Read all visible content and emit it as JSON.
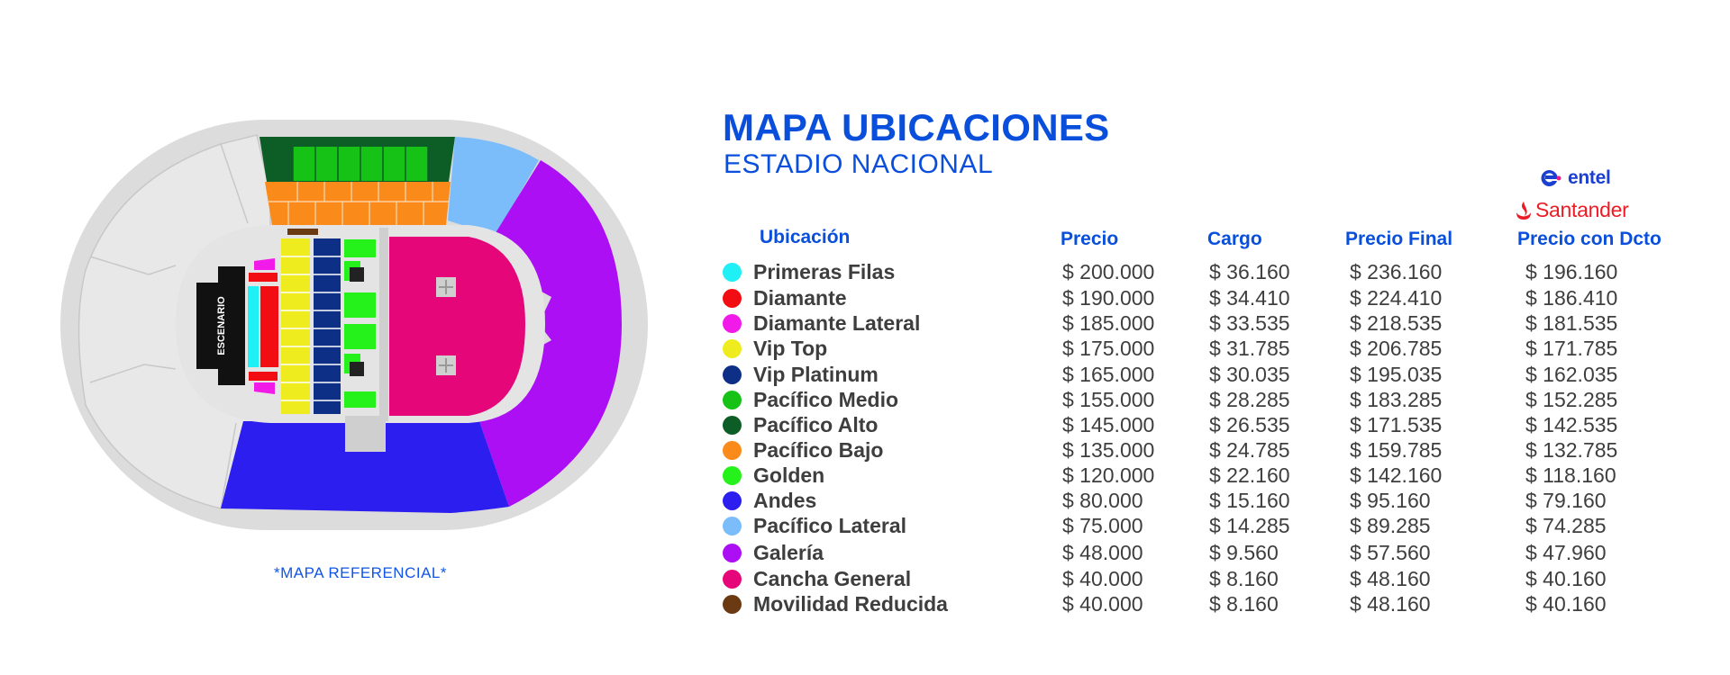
{
  "header": {
    "title": "MAPA UBICACIONES",
    "subtitle": "ESTADIO NACIONAL"
  },
  "brands": {
    "entel": "entel",
    "santander": "Santander"
  },
  "map": {
    "stage_label": "ESCENARIO",
    "note": "*MAPA REFERENCIAL*"
  },
  "table": {
    "columns": {
      "ubicacion": "Ubicación",
      "precio": "Precio",
      "cargo": "Cargo",
      "precio_final": "Precio Final",
      "precio_dcto": "Precio con Dcto"
    },
    "rows": [
      {
        "name": "Primeras Filas",
        "color": "#1ff0f5",
        "precio": "$ 200.000",
        "cargo": "$ 36.160",
        "final": "$ 236.160",
        "dcto": "$ 196.160"
      },
      {
        "name": "Diamante",
        "color": "#f20d12",
        "precio": "$ 190.000",
        "cargo": "$ 34.410",
        "final": "$ 224.410",
        "dcto": "$ 186.410"
      },
      {
        "name": "Diamante Lateral",
        "color": "#f21ae8",
        "precio": "$ 185.000",
        "cargo": "$ 33.535",
        "final": "$ 218.535",
        "dcto": "$ 181.535"
      },
      {
        "name": "Vip Top",
        "color": "#eeec1f",
        "precio": "$ 175.000",
        "cargo": "$ 31.785",
        "final": "$ 206.785",
        "dcto": "$ 171.785"
      },
      {
        "name": "Vip Platinum",
        "color": "#0d2f85",
        "precio": "$ 165.000",
        "cargo": "$ 30.035",
        "final": "$ 195.035",
        "dcto": "$ 162.035"
      },
      {
        "name": "Pacífico Medio",
        "color": "#17c217",
        "precio": "$ 155.000",
        "cargo": "$ 28.285",
        "final": "$ 183.285",
        "dcto": "$ 152.285"
      },
      {
        "name": "Pacífico Alto",
        "color": "#0d5e26",
        "precio": "$ 145.000",
        "cargo": "$ 26.535",
        "final": "$ 171.535",
        "dcto": "$ 142.535"
      },
      {
        "name": "Pacífico Bajo",
        "color": "#fa8a19",
        "precio": "$ 135.000",
        "cargo": "$ 24.785",
        "final": "$ 159.785",
        "dcto": "$ 132.785"
      },
      {
        "name": "Golden",
        "color": "#25f21a",
        "precio": "$ 120.000",
        "cargo": "$ 22.160",
        "final": "$ 142.160",
        "dcto": "$ 118.160"
      },
      {
        "name": "Andes",
        "color": "#2d1ef0",
        "precio": "$ 80.000",
        "cargo": "$ 15.160",
        "final": "$ 95.160",
        "dcto": "$ 79.160"
      },
      {
        "name": "Pacífico Lateral",
        "color": "#7bbdfa",
        "precio": "$ 75.000",
        "cargo": "$ 14.285",
        "final": "$ 89.285",
        "dcto": "$ 74.285"
      },
      {
        "name": "Galería",
        "color": "#ad0ff5",
        "precio": "$ 48.000",
        "cargo": "$ 9.560",
        "final": "$ 57.560",
        "dcto": "$ 47.960"
      },
      {
        "name": "Cancha General",
        "color": "#e5077a",
        "precio": "$ 40.000",
        "cargo": "$ 8.160",
        "final": "$ 48.160",
        "dcto": "$ 40.160"
      },
      {
        "name": "Movilidad Reducida",
        "color": "#6b3a12",
        "precio": "$ 40.000",
        "cargo": "$ 8.160",
        "final": "$ 48.160",
        "dcto": "$ 40.160"
      }
    ]
  }
}
